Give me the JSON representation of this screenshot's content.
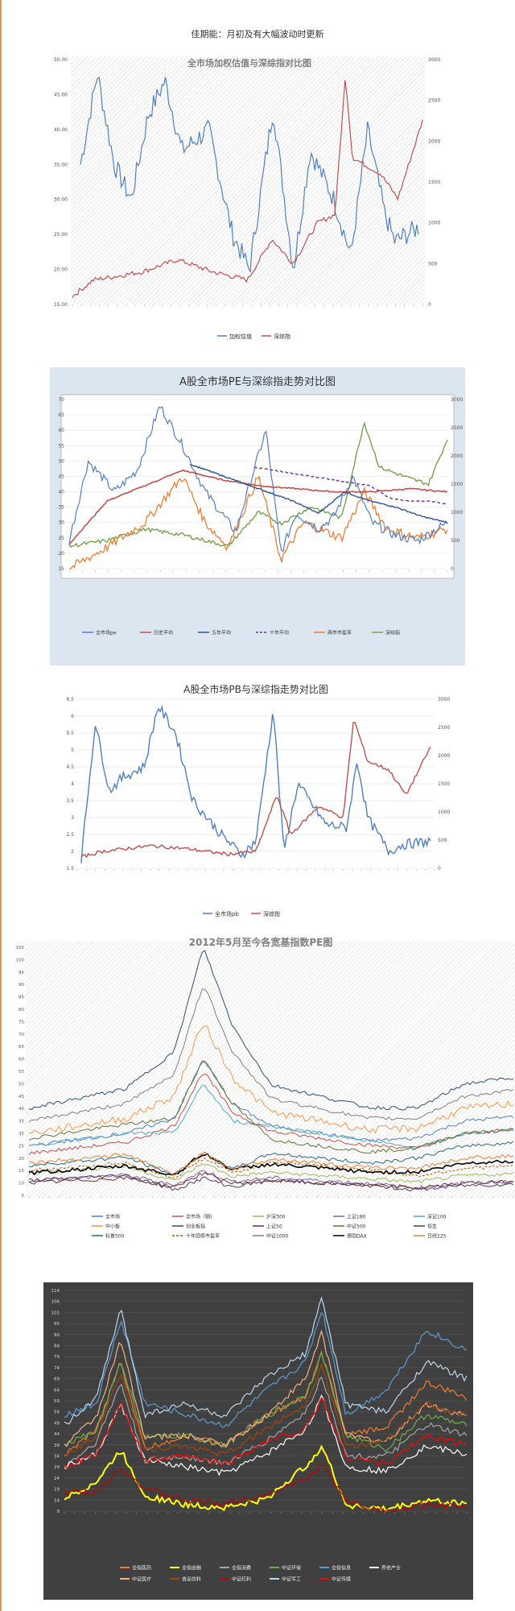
{
  "header": {
    "text": "佳期能：月初及有大幅波动时更新"
  },
  "charts": [
    {
      "type": "line",
      "title": "全市场加权估值与深综指对比图",
      "left_ticks": [
        "50.00",
        "45.00",
        "40.00",
        "35.00",
        "30.00",
        "25.00",
        "20.00",
        "15.00"
      ],
      "right_ticks": [
        "3000",
        "2500",
        "2000",
        "1500",
        "1000",
        "500",
        "0"
      ],
      "legend": [
        "加权估值",
        "深综指"
      ],
      "colors": {
        "pe": "#4f7fc1",
        "index": "#c0504d"
      }
    },
    {
      "type": "line",
      "title": "A股全市场PE与深综指走势对比图",
      "left_ticks": [
        "70",
        "65",
        "60",
        "55",
        "50",
        "45",
        "40",
        "35",
        "30",
        "25",
        "20",
        "15"
      ],
      "right_ticks": [
        "3000",
        "2500",
        "2000",
        "1500",
        "1000",
        "500",
        "0"
      ],
      "legend": [
        "全市场pe",
        "历史平均",
        "五年平均",
        "十年平均",
        "两市市盈率",
        "深综指"
      ],
      "colors": {
        "pe": "#4f7fc1",
        "hist": "#c0504d",
        "five": "#2f5597",
        "ten": "#7030a0",
        "ratio": "#ed7d31",
        "index": "#77a04a"
      }
    },
    {
      "type": "line",
      "title": "A股全市场PB与深综指走势对比图",
      "left_ticks": [
        "6.5",
        "6",
        "5.5",
        "5",
        "4.5",
        "4",
        "3.5",
        "3",
        "2.5",
        "2",
        "1.5"
      ],
      "right_ticks": [
        "3000",
        "2500",
        "2000",
        "1500",
        "1000",
        "500",
        "0"
      ],
      "legend": [
        "全市场pb",
        "深综指"
      ],
      "colors": {
        "pb": "#4f7fc1",
        "index": "#c0504d"
      }
    },
    {
      "type": "line",
      "title": "2012年5月至今各宽基指数PE图",
      "left_ticks": [
        "105",
        "100",
        "95",
        "90",
        "85",
        "80",
        "75",
        "70",
        "65",
        "60",
        "55",
        "50",
        "45",
        "40",
        "35",
        "30",
        "25",
        "20",
        "15",
        "10",
        "5"
      ],
      "legend": [
        "全市场",
        "全市场（剔)",
        "沪深300",
        "上证180",
        "深证100",
        "中小板",
        "创业板指",
        "上证50",
        "中证500",
        "恒生",
        "标普500",
        "十年国债市盈率",
        "中证1000",
        "德国DAX",
        "日经225"
      ],
      "colors": [
        "#4f7fc1",
        "#c0504d",
        "#9bbb59",
        "#8064a2",
        "#4bacc6",
        "#f79646",
        "#2c4d75",
        "#772c2a",
        "#5f7530",
        "#4d3b62",
        "#276a7c",
        "#b65708",
        "#7f7f7f",
        "#000000",
        "#ed7d31"
      ]
    },
    {
      "type": "line",
      "title": "",
      "left_ticks": [
        "114",
        "106",
        "101",
        "95",
        "90",
        "84",
        "79",
        "74",
        "69",
        "64",
        "59",
        "54",
        "49",
        "44",
        "39",
        "34",
        "29",
        "24",
        "19",
        "14",
        "9"
      ],
      "legend": [
        "全指医药",
        "全指金融",
        "全指消费",
        "中证环保",
        "全指信息",
        "养老产业",
        "中证医疗",
        "食品饮料",
        "中证红利",
        "中证军工",
        "中证传媒"
      ],
      "colors": [
        "#ed7d31",
        "#ffff00",
        "#a5a5a5",
        "#70ad47",
        "#5b9bd5",
        "#ffffff",
        "#f4b183",
        "#9e480e",
        "#c00000",
        "#bdd7ee",
        "#ff0000"
      ]
    }
  ]
}
